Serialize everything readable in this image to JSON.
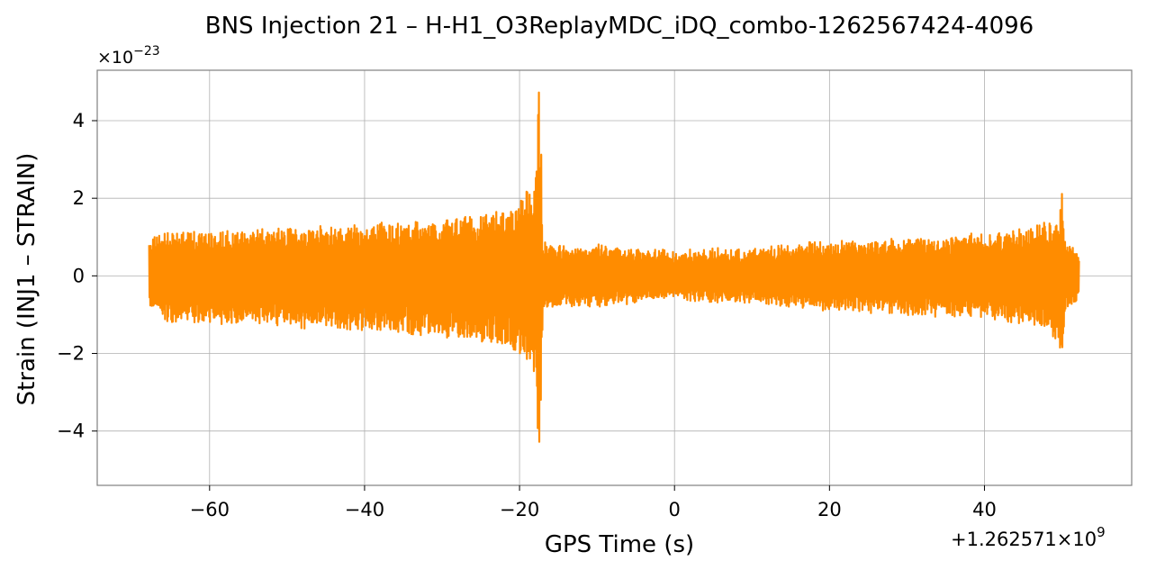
{
  "chart_data": {
    "type": "line",
    "title": "BNS Injection 21 – H-H1_O3ReplayMDC_iDQ_combo-1262567424-4096",
    "xlabel": "GPS Time (s)",
    "ylabel": "Strain (INJ1 – STRAIN)",
    "y_multiplier_label": "×10",
    "y_multiplier_exp": "−23",
    "x_offset_label": "+1.262571×10",
    "x_offset_exp": "9",
    "xlim": [
      -74.5,
      59
    ],
    "ylim": [
      -5.4,
      5.3
    ],
    "x_ticks": [
      -60,
      -40,
      -20,
      0,
      20,
      40
    ],
    "x_tick_labels": [
      "−60",
      "−40",
      "−20",
      "0",
      "20",
      "40"
    ],
    "y_ticks": [
      -4,
      -2,
      0,
      2,
      4
    ],
    "y_tick_labels": [
      "−4",
      "−2",
      "0",
      "2",
      "4"
    ],
    "grid": true,
    "series": [
      {
        "color": "#ff8c00",
        "x_range": [
          -67.8,
          52.2
        ],
        "envelope": {
          "x": [
            -67.8,
            -66,
            -60,
            -50,
            -40,
            -30,
            -25,
            -21,
            -19,
            -18,
            -17.8,
            -17.5,
            -17.2,
            -17.0,
            -16.5,
            -15,
            -10,
            0,
            10,
            20,
            30,
            40,
            45,
            48,
            49.5,
            50.0,
            50.3,
            51,
            52.2
          ],
          "upper": [
            0.9,
            1.1,
            1.1,
            1.25,
            1.3,
            1.45,
            1.55,
            1.8,
            2.2,
            2.8,
            3.6,
            4.8,
            3.2,
            1.0,
            0.85,
            0.75,
            0.75,
            0.6,
            0.7,
            0.85,
            0.95,
            1.05,
            1.2,
            1.4,
            1.6,
            2.15,
            0.9,
            0.75,
            0.6
          ],
          "lower": [
            -0.8,
            -1.15,
            -1.2,
            -1.3,
            -1.4,
            -1.55,
            -1.7,
            -1.9,
            -2.2,
            -2.8,
            -3.8,
            -4.95,
            -3.5,
            -1.2,
            -0.85,
            -0.8,
            -0.75,
            -0.6,
            -0.7,
            -0.85,
            -0.95,
            -1.05,
            -1.2,
            -1.4,
            -1.7,
            -2.55,
            -1.0,
            -0.8,
            -0.7
          ]
        }
      }
    ]
  }
}
